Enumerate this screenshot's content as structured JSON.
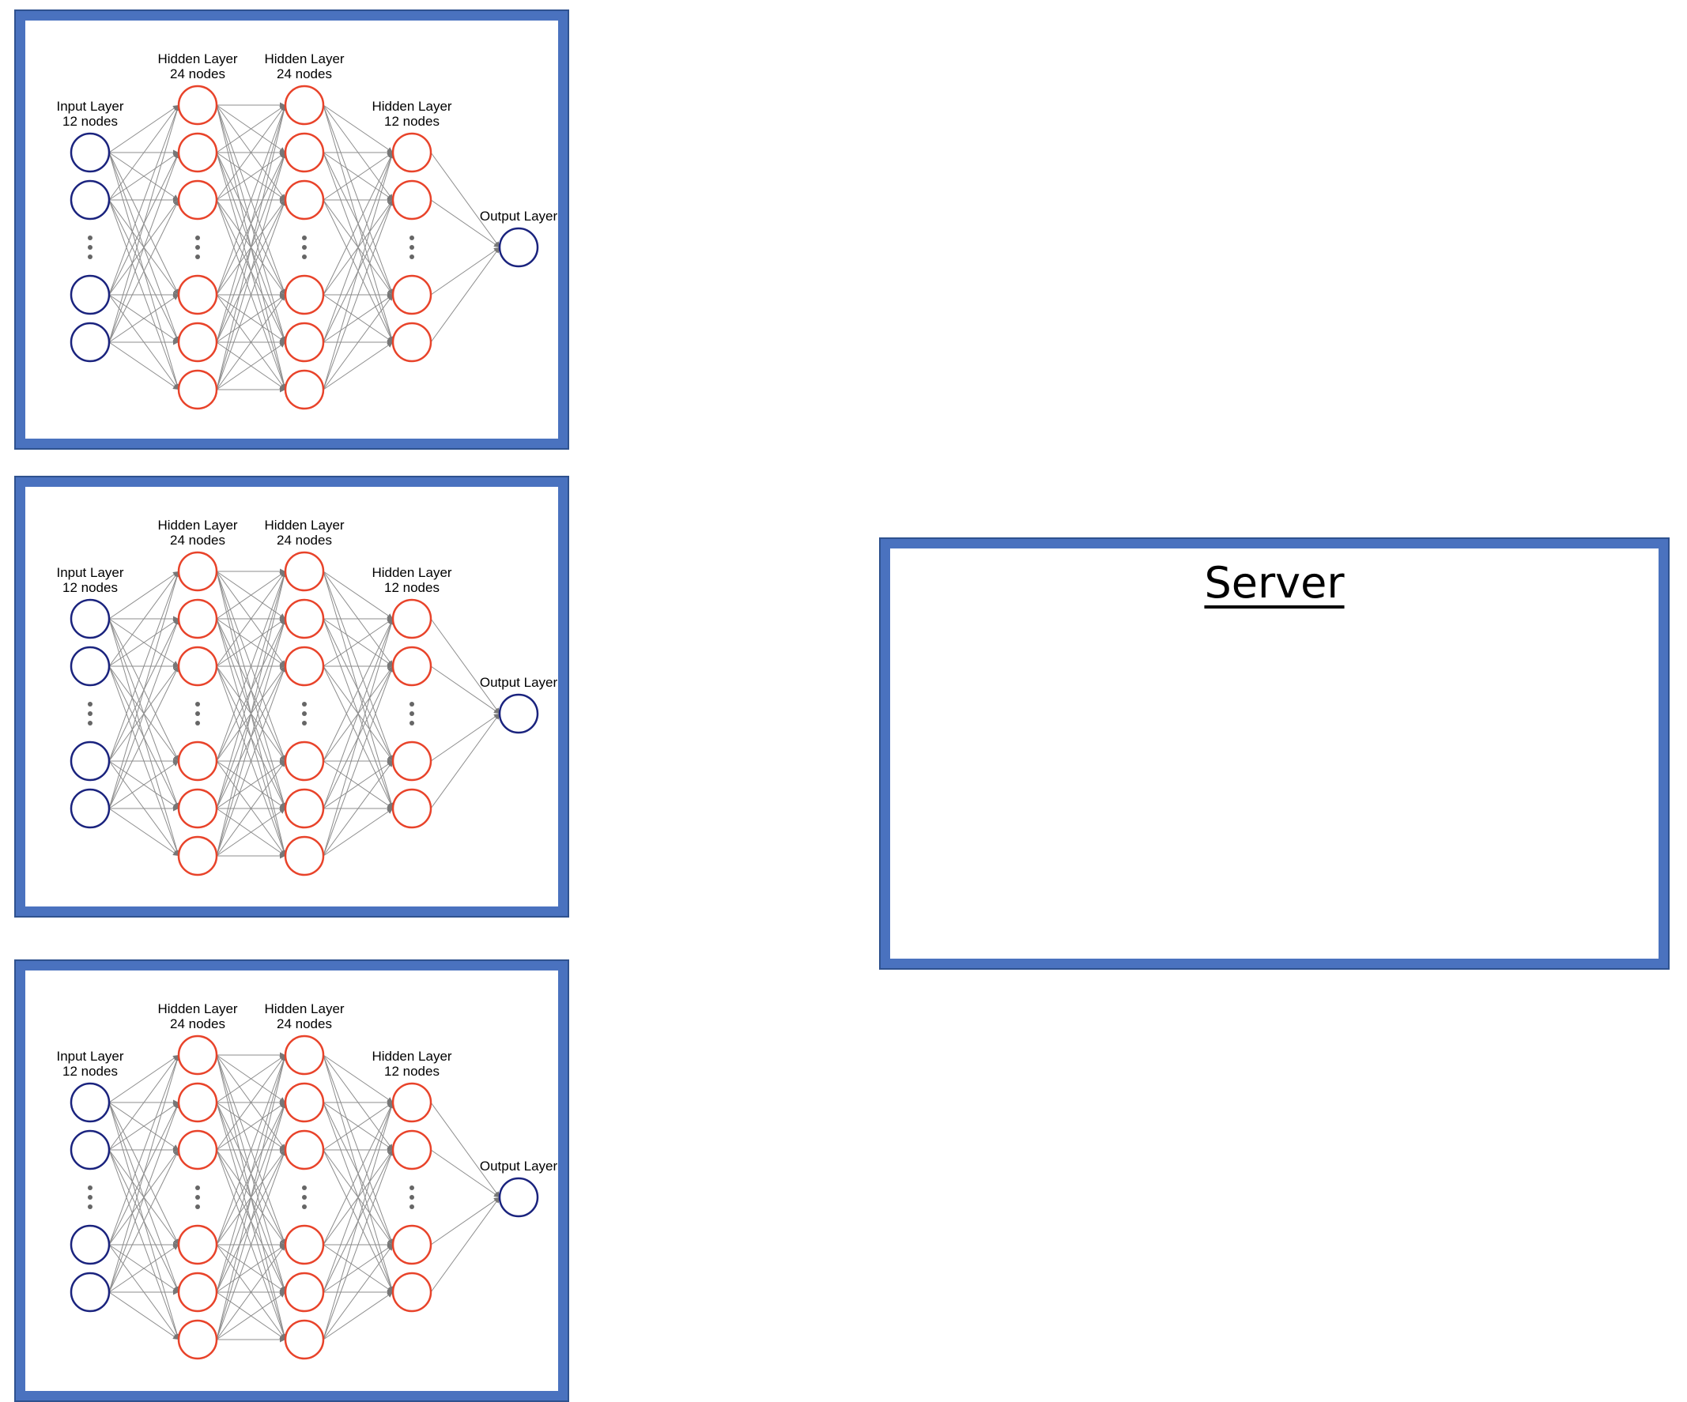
{
  "networks": [
    {
      "layers": [
        {
          "title": "Input Layer",
          "subtitle": "12 nodes",
          "kind": "input"
        },
        {
          "title": "Hidden Layer",
          "subtitle": "24 nodes",
          "kind": "hidden"
        },
        {
          "title": "Hidden Layer",
          "subtitle": "24 nodes",
          "kind": "hidden"
        },
        {
          "title": "Hidden Layer",
          "subtitle": "12 nodes",
          "kind": "hidden"
        },
        {
          "title": "Output Layer",
          "subtitle": "",
          "kind": "output"
        }
      ]
    },
    {
      "layers": [
        {
          "title": "Input Layer",
          "subtitle": "12 nodes",
          "kind": "input"
        },
        {
          "title": "Hidden Layer",
          "subtitle": "24 nodes",
          "kind": "hidden"
        },
        {
          "title": "Hidden Layer",
          "subtitle": "24 nodes",
          "kind": "hidden"
        },
        {
          "title": "Hidden Layer",
          "subtitle": "12 nodes",
          "kind": "hidden"
        },
        {
          "title": "Output Layer",
          "subtitle": "",
          "kind": "output"
        }
      ]
    },
    {
      "layers": [
        {
          "title": "Input Layer",
          "subtitle": "12 nodes",
          "kind": "input"
        },
        {
          "title": "Hidden Layer",
          "subtitle": "24 nodes",
          "kind": "hidden"
        },
        {
          "title": "Hidden Layer",
          "subtitle": "24 nodes",
          "kind": "hidden"
        },
        {
          "title": "Hidden Layer",
          "subtitle": "12 nodes",
          "kind": "hidden"
        },
        {
          "title": "Output Layer",
          "subtitle": "",
          "kind": "output"
        }
      ]
    }
  ],
  "server": {
    "title": "Server"
  },
  "colors": {
    "panel_border": "#4a72bf",
    "input_node": "#1a237e",
    "hidden_node": "#e8432a",
    "output_node": "#1a237e",
    "edge": "#8c8c8c"
  }
}
